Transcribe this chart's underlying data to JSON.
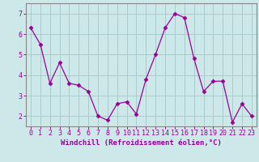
{
  "x": [
    0,
    1,
    2,
    3,
    4,
    5,
    6,
    7,
    8,
    9,
    10,
    11,
    12,
    13,
    14,
    15,
    16,
    17,
    18,
    19,
    20,
    21,
    22,
    23
  ],
  "y": [
    6.3,
    5.5,
    3.6,
    4.6,
    3.6,
    3.5,
    3.2,
    2.0,
    1.8,
    2.6,
    2.7,
    2.1,
    3.8,
    5.0,
    6.3,
    7.0,
    6.8,
    4.8,
    3.2,
    3.7,
    3.7,
    1.7,
    2.6,
    2.0
  ],
  "line_color": "#990099",
  "marker": "D",
  "marker_size": 2.5,
  "bg_color": "#cce8e8",
  "grid_color": "#aacccc",
  "xlabel": "Windchill (Refroidissement éolien,°C)",
  "xlabel_color": "#990099",
  "xlabel_fontsize": 6.5,
  "tick_color": "#990099",
  "tick_fontsize": 6,
  "yticks": [
    2,
    3,
    4,
    5,
    6,
    7
  ],
  "ylim": [
    1.5,
    7.5
  ],
  "xlim": [
    -0.5,
    23.5
  ],
  "spine_color": "#888888"
}
